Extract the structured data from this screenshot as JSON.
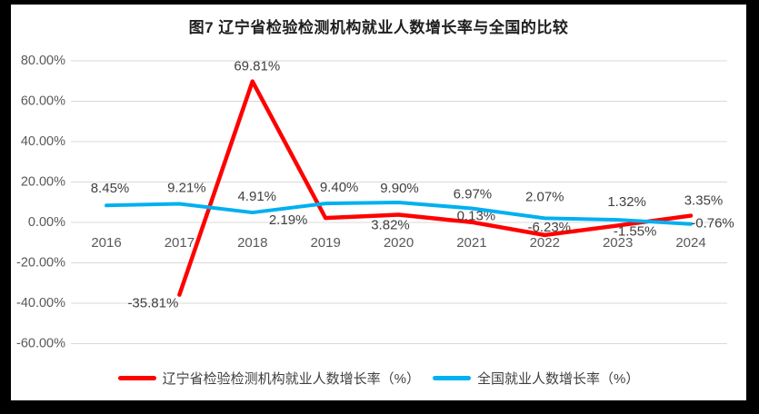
{
  "title": "图7 辽宁省检验检测机构就业人数增长率与全国的比较",
  "chart_data": {
    "type": "line",
    "categories": [
      "2016",
      "2017",
      "2018",
      "2019",
      "2020",
      "2021",
      "2022",
      "2023",
      "2024"
    ],
    "series": [
      {
        "key": "liaoning",
        "name": "辽宁省检验检测机构就业人数增长率（%）",
        "color": "#FF0000",
        "values": [
          null,
          -35.81,
          69.81,
          2.19,
          3.82,
          0.13,
          -6.23,
          -1.55,
          3.35
        ],
        "labels": [
          "",
          "-35.81%",
          "69.81%",
          "2.19%",
          "3.82%",
          "0.13%",
          "-6.23%",
          "-1.55%",
          "3.35%"
        ]
      },
      {
        "key": "national",
        "name": "全国就业人数增长率（%）",
        "color": "#00B0F0",
        "values": [
          8.45,
          9.21,
          4.91,
          9.4,
          9.9,
          6.97,
          2.07,
          1.32,
          -0.76
        ],
        "labels": [
          "8.45%",
          "9.21%",
          "4.91%",
          "9.40%",
          "9.90%",
          "6.97%",
          "2.07%",
          "1.32%",
          "-0.76%"
        ]
      }
    ],
    "yticks": {
      "values": [
        80,
        60,
        40,
        20,
        0,
        -20,
        -40,
        -60
      ],
      "labels": [
        "80.00%",
        "60.00%",
        "40.00%",
        "20.00%",
        "0.00%",
        "-20.00%",
        "-40.00%",
        "-60.00%"
      ]
    },
    "ylim": [
      -60,
      80
    ],
    "grid": true,
    "legend_position": "bottom",
    "label_offsets": {
      "liaoning": [
        [
          0,
          0
        ],
        [
          -29,
          10
        ],
        [
          5,
          -16
        ],
        [
          -41,
          3
        ],
        [
          -9,
          12
        ],
        [
          5,
          -6
        ],
        [
          5,
          -8
        ],
        [
          19,
          7
        ],
        [
          14,
          -16
        ]
      ],
      "national": [
        [
          4,
          -18
        ],
        [
          8,
          -17
        ],
        [
          5,
          -17
        ],
        [
          15,
          -17
        ],
        [
          1,
          -15
        ],
        [
          1,
          -15
        ],
        [
          0,
          -23
        ],
        [
          10,
          -19
        ],
        [
          24,
          0
        ]
      ]
    }
  }
}
